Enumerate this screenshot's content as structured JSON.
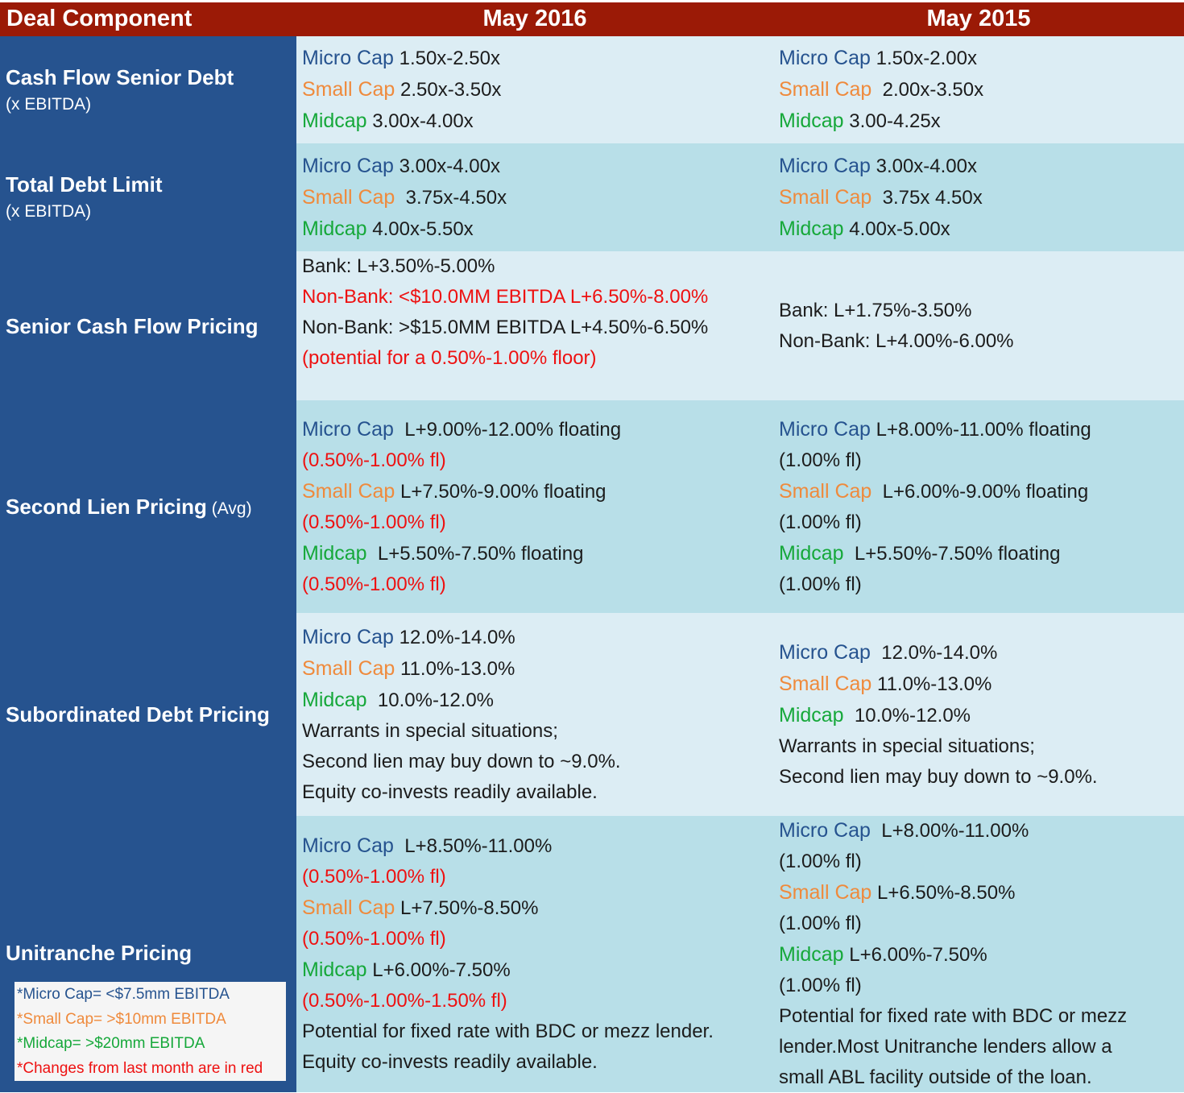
{
  "header": {
    "col0": "Deal Component",
    "col1": "May 2016",
    "col2": "May 2015"
  },
  "rows": [
    {
      "title": "Cash Flow Senior Debt",
      "subtitle": "(x EBITDA)",
      "may2016": {
        "micro_label": "Micro Cap",
        "micro_value": " 1.50x-2.50x",
        "small_label": "Small Cap",
        "small_value": " 2.50x-3.50x",
        "mid_label": "Midcap",
        "mid_value": " 3.00x-4.00x"
      },
      "may2015": {
        "micro_label": "Micro Cap",
        "micro_value": " 1.50x-2.00x",
        "small_label": "Small Cap",
        "small_value": "  2.00x-3.50x",
        "mid_label": "Midcap",
        "mid_value": " 3.00-4.25x"
      }
    },
    {
      "title": "Total Debt Limit",
      "subtitle": "(x EBITDA)",
      "may2016": {
        "micro_label": "Micro Cap",
        "micro_value": " 3.00x-4.00x",
        "small_label": "Small Cap",
        "small_value": "  3.75x-4.50x",
        "mid_label": "Midcap",
        "mid_value": " 4.00x-5.50x"
      },
      "may2015": {
        "micro_label": "Micro Cap",
        "micro_value": " 3.00x-4.00x",
        "small_label": "Small Cap",
        "small_value": "  3.75x 4.50x",
        "mid_label": "Midcap",
        "mid_value": " 4.00x-5.00x"
      }
    },
    {
      "title": "Senior Cash Flow Pricing",
      "may2016": {
        "line1": "Bank: L+3.50%-5.00%",
        "line2": "Non-Bank: <$10.0MM EBITDA L+6.50%-8.00%",
        "line3": "Non-Bank: >$15.0MM EBITDA L+4.50%-6.50%",
        "line4": "(potential for a 0.50%-1.00% floor)"
      },
      "may2015": {
        "line1": "Bank: L+1.75%-3.50%",
        "line2": "Non-Bank: L+4.00%-6.00%"
      }
    },
    {
      "title": "Second Lien Pricing",
      "title_suffix": " (Avg)",
      "may2016": {
        "micro_label": "Micro Cap",
        "micro_value": "  L+9.00%-12.00% floating",
        "micro_floor": "(0.50%-1.00% fl)",
        "small_label": "Small Cap",
        "small_value": " L+7.50%-9.00% floating",
        "small_floor": "(0.50%-1.00% fl)",
        "mid_label": "Midcap",
        "mid_value": "  L+5.50%-7.50% floating",
        "mid_floor": "(0.50%-1.00% fl)"
      },
      "may2015": {
        "micro_label": "Micro Cap",
        "micro_value": " L+8.00%-11.00% floating",
        "micro_floor": "(1.00% fl)",
        "small_label": "Small Cap",
        "small_value": "  L+6.00%-9.00% floating",
        "small_floor": "(1.00% fl)",
        "mid_label": "Midcap",
        "mid_value": "  L+5.50%-7.50% floating",
        "mid_floor": "(1.00% fl)"
      }
    },
    {
      "title": "Subordinated Debt Pricing",
      "may2016": {
        "micro_label": "Micro Cap",
        "micro_value": " 12.0%-14.0%",
        "small_label": "Small Cap",
        "small_value": " 11.0%-13.0%",
        "mid_label": "Midcap",
        "mid_value": "  10.0%-12.0%",
        "note1": "Warrants in special situations;",
        "note2": "Second lien may buy down to ~9.0%.",
        "note3": "Equity co-invests readily available."
      },
      "may2015": {
        "micro_label": "Micro Cap",
        "micro_value": "  12.0%-14.0%",
        "small_label": "Small Cap",
        "small_value": " 11.0%-13.0%",
        "mid_label": "Midcap",
        "mid_value": "  10.0%-12.0%",
        "note1": "Warrants in special situations;",
        "note2": "Second lien may buy down to ~9.0%."
      }
    },
    {
      "title": "Unitranche Pricing",
      "may2016": {
        "micro_label": "Micro Cap",
        "micro_value": "  L+8.50%-11.00%",
        "micro_floor": "(0.50%-1.00% fl)",
        "small_label": "Small Cap",
        "small_value": " L+7.50%-8.50%",
        "small_floor": "(0.50%-1.00% fl)",
        "mid_label": "Midcap",
        "mid_value": " L+6.00%-7.50%",
        "mid_floor": "(0.50%-1.00%-1.50% fl)",
        "note1": "Potential for fixed rate with BDC or mezz lender.",
        "note2": "Equity co-invests readily available."
      },
      "may2015": {
        "micro_label": "Micro Cap",
        "micro_value": "  L+8.00%-11.00%",
        "micro_floor": "(1.00% fl)",
        "small_label": "Small Cap",
        "small_value": " L+6.50%-8.50%",
        "small_floor": "(1.00% fl)",
        "mid_label": "Midcap",
        "mid_value": " L+6.00%-7.50%",
        "mid_floor": "(1.00% fl)",
        "note1": "Potential for fixed rate with BDC or mezz",
        "note2": "lender.Most Unitranche lenders allow a",
        "note3": "small ABL facility outside of the loan."
      }
    }
  ],
  "legend": {
    "micro": "*Micro Cap= <$7.5mm EBITDA",
    "small": "*Small Cap= >$10mm EBITDA",
    "mid": "*Midcap= >$20mm EBITDA",
    "changes": "*Changes from last month are in red"
  },
  "colors": {
    "header_bg": "#9b1a06",
    "left_col_bg": "#26538f",
    "row_light": "#dcedf4",
    "row_dark": "#b8dfe8",
    "micro": "#26538f",
    "small": "#ef8a3c",
    "mid": "#16a83a",
    "changed": "#ee1111"
  }
}
